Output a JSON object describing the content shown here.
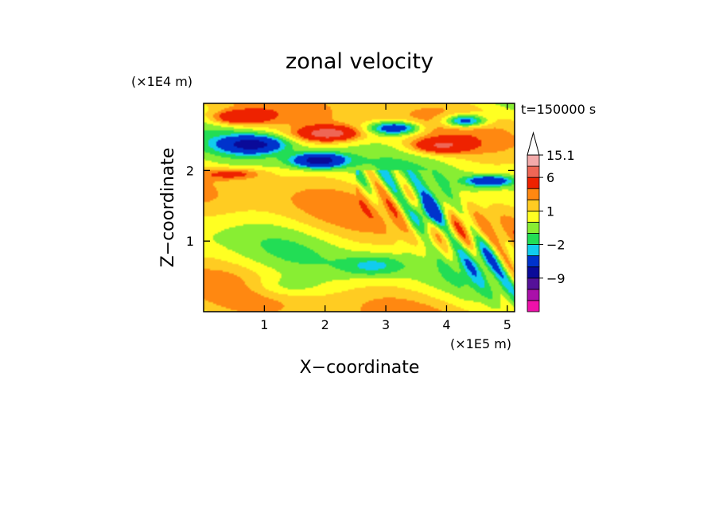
{
  "chart_data": {
    "type": "heatmap",
    "title": "zonal velocity",
    "xlabel": "X−coordinate",
    "ylabel": "Z−coordinate",
    "x_unit": "(×1E5 m)",
    "y_unit": "(×1E4 m)",
    "time_label": "t=150000 s",
    "xlim": [
      0,
      5.12
    ],
    "ylim": [
      0,
      2.95
    ],
    "x_ticks": [
      1,
      2,
      3,
      4,
      5
    ],
    "y_ticks": [
      1,
      2
    ],
    "colorbar": {
      "min_label": "",
      "levels": [
        -15,
        -12,
        -9,
        -6,
        -3,
        -2,
        -1,
        0,
        1,
        2,
        3,
        6,
        9,
        12,
        15.1
      ],
      "colors": [
        "#ee11aa",
        "#aa11aa",
        "#551199",
        "#0a0a99",
        "#0033cc",
        "#11ccee",
        "#22dd55",
        "#88ee33",
        "#ffff22",
        "#ffcc22",
        "#ff8811",
        "#ee2200",
        "#ee6655",
        "#f3aaaa",
        "#ffffff"
      ],
      "tick_labels": [
        "15.1",
        "6",
        "1",
        "−2",
        "−9"
      ],
      "tick_values": [
        15.1,
        6,
        1,
        -2,
        -9
      ]
    },
    "field_features": [
      {
        "x": 0.8,
        "z": 2.37,
        "value": -7,
        "sx": 0.5,
        "sz": 0.12
      },
      {
        "x": 1.9,
        "z": 2.14,
        "value": -8,
        "sx": 0.42,
        "sz": 0.1
      },
      {
        "x": 2.05,
        "z": 2.52,
        "value": 7,
        "sx": 0.45,
        "sz": 0.1
      },
      {
        "x": 3.15,
        "z": 2.6,
        "value": -6,
        "sx": 0.4,
        "sz": 0.09
      },
      {
        "x": 4.3,
        "z": 2.7,
        "value": -6,
        "sx": 0.35,
        "sz": 0.09
      },
      {
        "x": 3.9,
        "z": 2.35,
        "value": 5,
        "sx": 0.45,
        "sz": 0.1
      },
      {
        "x": 4.7,
        "z": 1.85,
        "value": -6,
        "sx": 0.35,
        "sz": 0.07
      },
      {
        "x": 0.6,
        "z": 2.75,
        "value": 5,
        "sx": 0.45,
        "sz": 0.1
      },
      {
        "x": 0.5,
        "z": 1.95,
        "value": 3,
        "sx": 0.5,
        "sz": 0.08
      },
      {
        "x": 3.7,
        "z": 1.4,
        "value": -5,
        "sx": 0.3,
        "sz": 0.25
      },
      {
        "x": 2.8,
        "z": 0.65,
        "value": -2.5,
        "sx": 0.5,
        "sz": 0.15
      },
      {
        "x": 1.3,
        "z": 0.35,
        "value": -1.5,
        "sx": 0.6,
        "sz": 0.15
      },
      {
        "x": 4.6,
        "z": 0.8,
        "value": -2.5,
        "sx": 0.35,
        "sz": 0.3
      }
    ]
  }
}
